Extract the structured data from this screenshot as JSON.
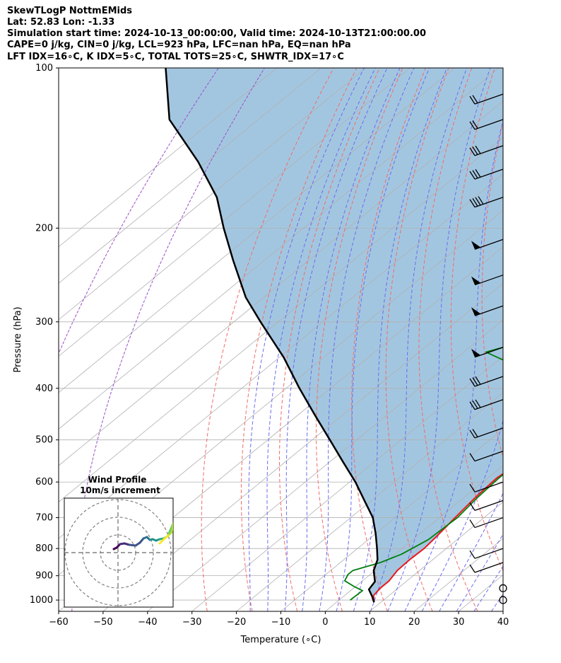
{
  "header": {
    "line1": "SkewTLogP NottmEMids",
    "line2": "Lat: 52.83   Lon: -1.33",
    "line3": "Simulation start time: 2024-10-13_00:00:00, Valid time: 2024-10-13T21:00:00.00",
    "line4": "CAPE=0 j/kg, CIN=0 j/kg, LCL=923 hPa, LFC=nan hPa, EQ=nan hPa",
    "line5": "LFT IDX=16∘C, K IDX=5∘C, TOTAL TOTS=25∘C, SHWTR_IDX=17∘C"
  },
  "chart_data": [
    {
      "type": "line",
      "subtype": "skew-t log-p diagram",
      "xlabel": "Temperature (∘C)",
      "ylabel": "Pressure (hPa)",
      "xlim": [
        -60,
        40
      ],
      "ylim": [
        1050,
        100
      ],
      "y_scale": "log",
      "x_ticks": [
        "−60",
        "−50",
        "−40",
        "−30",
        "−20",
        "−10",
        "0",
        "10",
        "20",
        "30",
        "40"
      ],
      "x_tick_values": [
        -60,
        -50,
        -40,
        -30,
        -20,
        -10,
        0,
        10,
        20,
        30,
        40
      ],
      "y_ticks": [
        "100",
        "200",
        "300",
        "400",
        "500",
        "600",
        "700",
        "800",
        "900",
        "1000"
      ],
      "y_tick_values": [
        100,
        200,
        300,
        400,
        500,
        600,
        700,
        800,
        900,
        1000
      ],
      "grid": true,
      "series": [
        {
          "role": "temperature",
          "color": "#e8191c",
          "points": [
            [
              8.5,
              1010
            ],
            [
              6.5,
              980
            ],
            [
              6,
              950
            ],
            [
              6,
              920
            ],
            [
              5,
              880
            ],
            [
              4.8,
              840
            ],
            [
              5,
              800
            ],
            [
              4.5,
              760
            ],
            [
              3.5,
              700
            ],
            [
              2.5,
              640
            ],
            [
              2,
              590
            ],
            [
              3.5,
              530
            ],
            [
              2.5,
              490
            ],
            [
              0.5,
              450
            ],
            [
              -1.5,
              420
            ],
            [
              -3.5,
              385
            ],
            [
              -5,
              355
            ],
            [
              -4.3,
              320
            ],
            [
              -3,
              285
            ],
            [
              -3,
              262
            ],
            [
              -4,
              243
            ],
            [
              -6,
              220
            ],
            [
              -5.5,
              205
            ],
            [
              -3.5,
              190
            ],
            [
              0,
              175
            ],
            [
              2.5,
              160
            ],
            [
              4,
              145
            ],
            [
              5,
              133
            ],
            [
              7.5,
              120
            ],
            [
              9,
              111
            ],
            [
              10,
              100
            ]
          ]
        },
        {
          "role": "dewpoint",
          "color": "#007f0e",
          "points": [
            [
              2.5,
              1000
            ],
            [
              2.7,
              960
            ],
            [
              0,
              945
            ],
            [
              -4,
              920
            ],
            [
              -5,
              895
            ],
            [
              -5,
              880
            ],
            [
              -1,
              850
            ],
            [
              1.5,
              820
            ],
            [
              3.5,
              770
            ],
            [
              4,
              700
            ],
            [
              3,
              640
            ],
            [
              2.5,
              590
            ],
            [
              2.5,
              530
            ],
            [
              -1,
              495
            ],
            [
              -5,
              470
            ],
            [
              -5,
              442
            ],
            [
              -1.5,
              430
            ],
            [
              -7,
              400
            ],
            [
              -20,
              372
            ],
            [
              -35,
              342
            ],
            [
              -26,
              318
            ],
            [
              -20,
              293
            ],
            [
              -17,
              272
            ],
            [
              -10,
              253
            ],
            [
              -11.5,
              237
            ],
            [
              -17,
              222
            ],
            [
              -19.5,
              210
            ],
            [
              -20,
              195
            ],
            [
              -20,
              175
            ],
            [
              -18,
              158
            ],
            [
              -13,
              138
            ],
            [
              -7,
              117
            ],
            [
              -2,
              100
            ]
          ]
        },
        {
          "role": "parcel-profile",
          "color": "#000000",
          "points": [
            [
              8.5,
              1010
            ],
            [
              6.5,
              985
            ],
            [
              3.8,
              955
            ],
            [
              3,
              923
            ],
            [
              -0.3,
              880
            ],
            [
              -2.4,
              840
            ],
            [
              -5.6,
              800
            ],
            [
              -10,
              750
            ],
            [
              -15,
              700
            ],
            [
              -21.6,
              650
            ],
            [
              -28.7,
              600
            ],
            [
              -37,
              550
            ],
            [
              -46,
              500
            ],
            [
              -56,
              450
            ],
            [
              -67,
              400
            ],
            [
              -79,
              350
            ],
            [
              -94,
              300
            ],
            [
              -104,
              270
            ],
            [
              -117,
              230
            ],
            [
              -128,
              200
            ],
            [
              -138,
              175
            ],
            [
              -152,
              150
            ],
            [
              -170,
              125
            ],
            [
              -185,
              100
            ]
          ]
        }
      ],
      "shaded_region": {
        "color": "#a3c6e0",
        "between": [
          "parcel-profile",
          "temperature"
        ]
      },
      "wind_barbs": [
        {
          "pressure": 1000,
          "barb": "calm"
        },
        {
          "pressure": 950,
          "barb": "calm"
        },
        {
          "pressure": 850,
          "barb": "1 full"
        },
        {
          "pressure": 800,
          "barb": "1 full"
        },
        {
          "pressure": 700,
          "barb": "1 full"
        },
        {
          "pressure": 650,
          "barb": "1 full"
        },
        {
          "pressure": 600,
          "barb": "1 full"
        },
        {
          "pressure": 525,
          "barb": "1 full"
        },
        {
          "pressure": 475,
          "barb": "2 full"
        },
        {
          "pressure": 420,
          "barb": "3 full"
        },
        {
          "pressure": 380,
          "barb": "3 full"
        },
        {
          "pressure": 335,
          "barb": "flag"
        },
        {
          "pressure": 280,
          "barb": "flag"
        },
        {
          "pressure": 245,
          "barb": "flag"
        },
        {
          "pressure": 210,
          "barb": "flag"
        },
        {
          "pressure": 175,
          "barb": "4 full"
        },
        {
          "pressure": 155,
          "barb": "3 full"
        },
        {
          "pressure": 140,
          "barb": "3 full"
        },
        {
          "pressure": 125,
          "barb": "2 full"
        },
        {
          "pressure": 112,
          "barb": "2 full"
        }
      ]
    },
    {
      "type": "line",
      "subtype": "hodograph",
      "title": "Wind Profile",
      "subtitle": "10m/s increment",
      "colormap": "viridis",
      "grid": true
    }
  ]
}
